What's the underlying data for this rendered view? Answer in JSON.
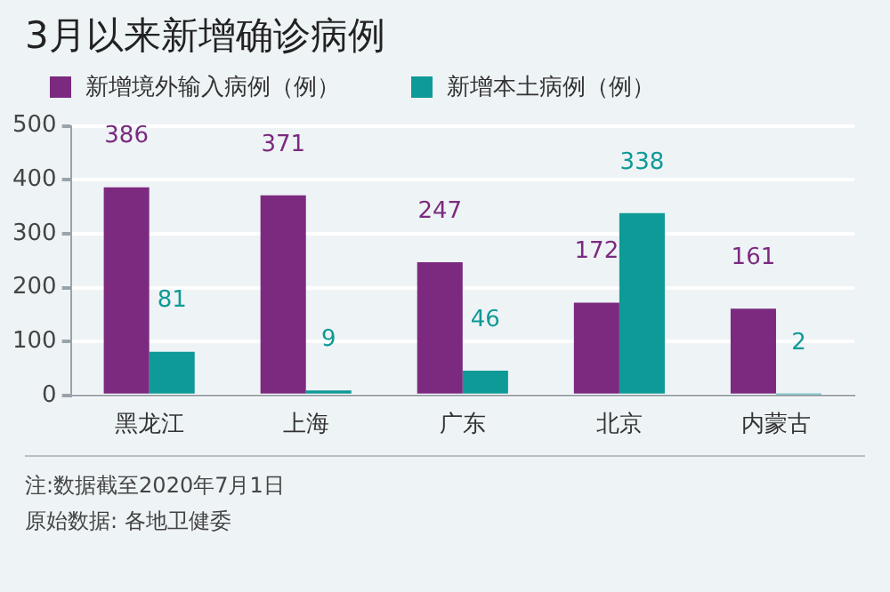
{
  "chart_data": {
    "type": "bar",
    "title": "3月以来新增确诊病例",
    "categories": [
      "黑龙江",
      "上海",
      "广东",
      "北京",
      "内蒙古"
    ],
    "series": [
      {
        "name": "新增境外输入病例（例）",
        "color": "#7b2a7f",
        "values": [
          386,
          371,
          247,
          172,
          161
        ]
      },
      {
        "name": "新增本土病例（例）",
        "color": "#0e9a96",
        "values": [
          81,
          9,
          46,
          338,
          2
        ]
      }
    ],
    "ylim": [
      0,
      500
    ],
    "yticks": [
      0,
      100,
      200,
      300,
      400,
      500
    ],
    "grid": "y",
    "legend": "top left",
    "data_labels": true,
    "annotations": [
      "注:数据截至2020年7月1日",
      "原始数据: 各地卫健委"
    ]
  }
}
